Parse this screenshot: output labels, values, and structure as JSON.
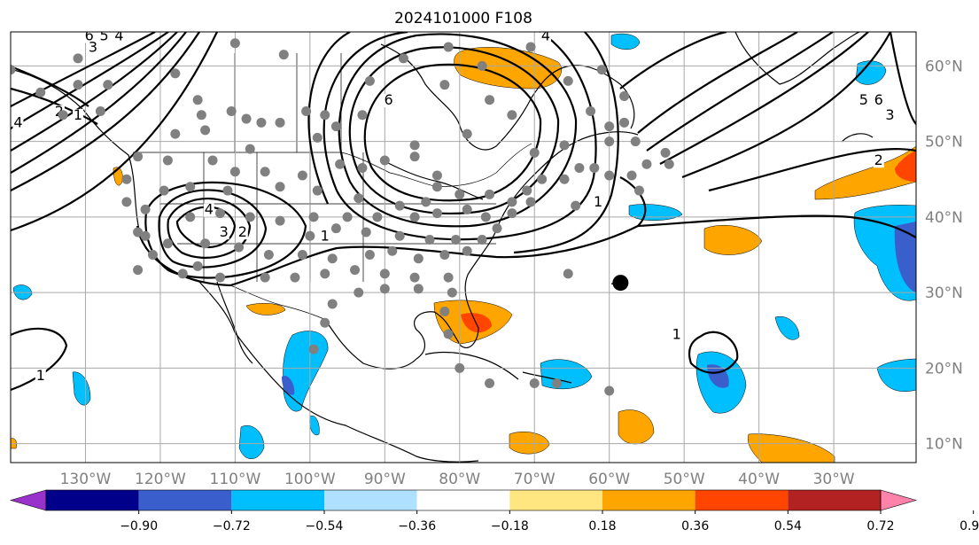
{
  "title": "2024101000 F108",
  "map": {
    "lon_range": [
      -140,
      -19
    ],
    "lat_range": [
      7.5,
      64.5
    ],
    "lon_ticks": [
      {
        "lon": -130,
        "label": "130°W"
      },
      {
        "lon": -120,
        "label": "120°W"
      },
      {
        "lon": -110,
        "label": "110°W"
      },
      {
        "lon": -100,
        "label": "100°W"
      },
      {
        "lon": -90,
        "label": "90°W"
      },
      {
        "lon": -80,
        "label": "80°W"
      },
      {
        "lon": -70,
        "label": "70°W"
      },
      {
        "lon": -60,
        "label": "60°W"
      },
      {
        "lon": -50,
        "label": "50°W"
      },
      {
        "lon": -40,
        "label": "40°W"
      },
      {
        "lon": -30,
        "label": "30°W"
      }
    ],
    "lat_ticks": [
      {
        "lat": 60,
        "label": "60°N"
      },
      {
        "lat": 50,
        "label": "50°N"
      },
      {
        "lat": 40,
        "label": "40°N"
      },
      {
        "lat": 30,
        "label": "30°N"
      },
      {
        "lat": 20,
        "label": "20°N"
      },
      {
        "lat": 10,
        "label": "10°N"
      }
    ],
    "grid": true
  },
  "colorbar": {
    "colors": [
      "#9932cc",
      "#00008b",
      "#3a5fcd",
      "#00bfff",
      "#b0e0ff",
      "#ffffff",
      "#ffe680",
      "#ffa500",
      "#ff4500",
      "#b22222",
      "#ff82ab"
    ],
    "labels": [
      "−0.90",
      "−0.72",
      "−0.54",
      "−0.36",
      "−0.18",
      "0.18",
      "0.36",
      "0.54",
      "0.72",
      "0.90"
    ]
  },
  "colors": {
    "station_dot": "#808080",
    "contour": "#000000"
  },
  "contour_labels": [
    {
      "text": "6",
      "lon": -129.5,
      "lat": 63.5
    },
    {
      "text": "5",
      "lon": -127.5,
      "lat": 63.5
    },
    {
      "text": "4",
      "lon": -125.5,
      "lat": 63.5
    },
    {
      "text": "3",
      "lon": -129,
      "lat": 62
    },
    {
      "text": "2",
      "lon": -133.5,
      "lat": 53.5
    },
    {
      "text": "1",
      "lon": -131,
      "lat": 53
    },
    {
      "text": "4",
      "lon": -139,
      "lat": 52
    },
    {
      "text": "4",
      "lon": -113.5,
      "lat": 40.5
    },
    {
      "text": "3",
      "lon": -111.5,
      "lat": 37.5
    },
    {
      "text": "2",
      "lon": -109,
      "lat": 37.5
    },
    {
      "text": "1",
      "lon": -98,
      "lat": 37
    },
    {
      "text": "6",
      "lon": -89.5,
      "lat": 55
    },
    {
      "text": "1",
      "lon": -61.5,
      "lat": 41.5
    },
    {
      "text": "4",
      "lon": -68.5,
      "lat": 63.5
    },
    {
      "text": "5",
      "lon": -26,
      "lat": 55
    },
    {
      "text": "6",
      "lon": -24,
      "lat": 55
    },
    {
      "text": "3",
      "lon": -22.5,
      "lat": 53
    },
    {
      "text": "2",
      "lon": -24,
      "lat": 47
    },
    {
      "text": "1",
      "lon": -51,
      "lat": 24
    },
    {
      "text": "1",
      "lon": -136,
      "lat": 18.5
    }
  ],
  "storm_marker": {
    "lon": -58.5,
    "lat": 31.3
  },
  "stations": [
    [
      -131,
      61
    ],
    [
      -140,
      59.5
    ],
    [
      -136,
      56.5
    ],
    [
      -131,
      57.5
    ],
    [
      -127,
      57.5
    ],
    [
      -133,
      53.5
    ],
    [
      -128,
      54
    ],
    [
      -118,
      59
    ],
    [
      -115,
      55.5
    ],
    [
      -114.5,
      53.5
    ],
    [
      -110.5,
      54
    ],
    [
      -114,
      51.5
    ],
    [
      -118,
      51
    ],
    [
      -108.5,
      53
    ],
    [
      -106.5,
      52.5
    ],
    [
      -104,
      52.5
    ],
    [
      -100.5,
      54
    ],
    [
      -98,
      53.5
    ],
    [
      -99,
      50.5
    ],
    [
      -96.5,
      52
    ],
    [
      -93,
      53.5
    ],
    [
      -108,
      49
    ],
    [
      -113,
      47.5
    ],
    [
      -123,
      48
    ],
    [
      -119,
      47.5
    ],
    [
      -110,
      46
    ],
    [
      -106,
      46
    ],
    [
      -101,
      45.5
    ],
    [
      -96,
      47
    ],
    [
      -93,
      46.5
    ],
    [
      -90,
      47.5
    ],
    [
      -86,
      48
    ],
    [
      -83,
      45.5
    ],
    [
      -124.5,
      45
    ],
    [
      -119.5,
      43.5
    ],
    [
      -116,
      44
    ],
    [
      -111,
      43.5
    ],
    [
      -104,
      44
    ],
    [
      -99,
      43.5
    ],
    [
      -93.5,
      42.5
    ],
    [
      -88,
      41.5
    ],
    [
      -84.5,
      42
    ],
    [
      -83,
      44
    ],
    [
      -80,
      43
    ],
    [
      -76,
      43
    ],
    [
      -73,
      42
    ],
    [
      -71,
      43.5
    ],
    [
      -69,
      45
    ],
    [
      -66,
      45
    ],
    [
      -64,
      46.5
    ],
    [
      -62,
      46.5
    ],
    [
      -60,
      45.5
    ],
    [
      -124.5,
      42
    ],
    [
      -122,
      41
    ],
    [
      -116,
      40
    ],
    [
      -112,
      40.5
    ],
    [
      -108,
      40
    ],
    [
      -104,
      39.5
    ],
    [
      -99.5,
      40
    ],
    [
      -95,
      40
    ],
    [
      -91,
      40
    ],
    [
      -86,
      40
    ],
    [
      -83,
      40.5
    ],
    [
      -79,
      41
    ],
    [
      -76.5,
      40
    ],
    [
      -73,
      40.5
    ],
    [
      -70.5,
      42
    ],
    [
      -122,
      37.5
    ],
    [
      -119,
      36.5
    ],
    [
      -114,
      36.5
    ],
    [
      -109.5,
      36
    ],
    [
      -105.5,
      35
    ],
    [
      -101,
      35
    ],
    [
      -97,
      34.5
    ],
    [
      -92,
      35
    ],
    [
      -89,
      35.5
    ],
    [
      -85.5,
      34.5
    ],
    [
      -82,
      35
    ],
    [
      -79,
      35.5
    ],
    [
      -77,
      37
    ],
    [
      -75,
      38.5
    ],
    [
      -80.5,
      37
    ],
    [
      -84,
      37
    ],
    [
      -88,
      37.5
    ],
    [
      -92.5,
      38
    ],
    [
      -96.5,
      38.5
    ],
    [
      -100,
      37.5
    ],
    [
      -123,
      33
    ],
    [
      -117,
      32.5
    ],
    [
      -112,
      32
    ],
    [
      -106,
      32
    ],
    [
      -102,
      32
    ],
    [
      -98,
      32.5
    ],
    [
      -94,
      33
    ],
    [
      -90,
      32.5
    ],
    [
      -86,
      32
    ],
    [
      -81.5,
      32
    ],
    [
      -97,
      28.5
    ],
    [
      -93.5,
      30
    ],
    [
      -90,
      30.5
    ],
    [
      -85.5,
      30.5
    ],
    [
      -81,
      30
    ],
    [
      -82,
      27.5
    ],
    [
      -81.5,
      24.5
    ],
    [
      -98,
      26
    ],
    [
      -99.5,
      22.5
    ],
    [
      -80,
      20
    ],
    [
      -76,
      18
    ],
    [
      -70,
      18
    ],
    [
      -67,
      18
    ],
    [
      -60,
      17
    ],
    [
      -65.5,
      32.5
    ],
    [
      -62.5,
      54
    ],
    [
      -60,
      52
    ],
    [
      -56.5,
      50
    ],
    [
      -52.5,
      48.5
    ],
    [
      -55,
      47
    ],
    [
      -57,
      45.5
    ],
    [
      -56,
      43.5
    ],
    [
      -52,
      47
    ],
    [
      -73,
      53.5
    ],
    [
      -79,
      51
    ],
    [
      -86,
      49.5
    ],
    [
      -92,
      58
    ],
    [
      -110,
      63
    ],
    [
      -103.5,
      61.5
    ],
    [
      -87.5,
      61
    ],
    [
      -81.5,
      62.5
    ],
    [
      -70.5,
      62.5
    ],
    [
      -82,
      57.5
    ],
    [
      -77,
      60
    ],
    [
      -76,
      55.5
    ],
    [
      -65.5,
      58
    ],
    [
      -61,
      59.5
    ],
    [
      -70,
      48.5
    ],
    [
      -66,
      49.5
    ],
    [
      -64.5,
      41.5
    ],
    [
      -60,
      50
    ],
    [
      -58,
      52.5
    ],
    [
      -58,
      56
    ],
    [
      -123,
      38
    ],
    [
      -121,
      35
    ],
    [
      -115,
      33.5
    ]
  ]
}
